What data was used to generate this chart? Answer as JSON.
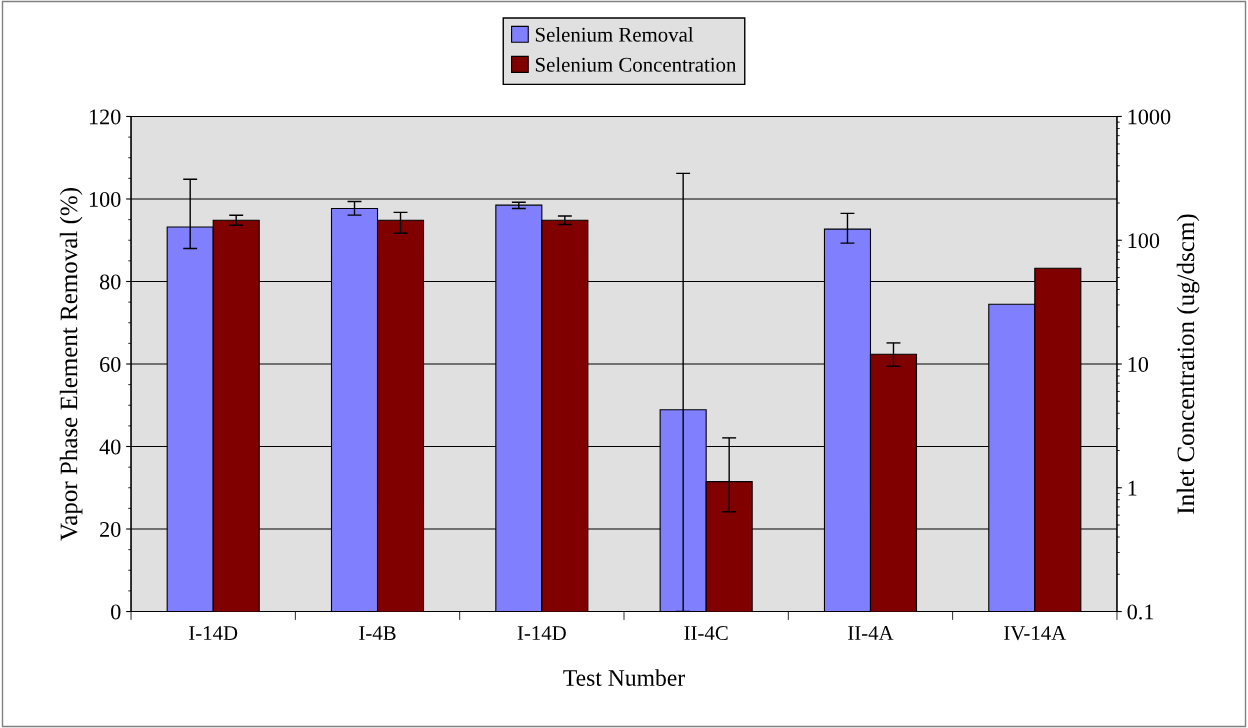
{
  "chart_data": {
    "type": "bar",
    "xlabel": "Test Number",
    "ylabel": "Vapor Phase Element Removal (%)",
    "y2label": "Inlet Concentration (ug/dscm)",
    "categories": [
      "I-14D",
      "I-4B",
      "I-14D",
      "II-4C",
      "II-4A",
      "IV-14A"
    ],
    "series": [
      {
        "name": "Selenium Removal",
        "color": "#8080ff",
        "values": [
          93.2,
          97.7,
          98.5,
          48.9,
          92.7,
          74.5
        ],
        "errors": [
          [
            88,
            104.8
          ],
          [
            96.1,
            99.4
          ],
          [
            97.7,
            99.2
          ],
          [
            0,
            106.2
          ],
          [
            89.3,
            96.5
          ],
          null
        ]
      },
      {
        "name": "Selenium Concentration",
        "color": "#800000",
        "axis": "y2",
        "values": [
          145,
          145,
          145,
          1.12,
          12,
          59.4
        ],
        "errors": [
          [
            132,
            159
          ],
          [
            114,
            168
          ],
          [
            134,
            157
          ],
          [
            0.64,
            2.53
          ],
          [
            9.6,
            14.8
          ],
          null
        ]
      }
    ],
    "ylim": [
      0,
      120
    ],
    "yticks": [
      0,
      20,
      40,
      60,
      80,
      100,
      120
    ],
    "y2lim": [
      0.1,
      1000
    ],
    "y2ticks": [
      0.1,
      1,
      10,
      100,
      1000
    ],
    "log": "y2",
    "grid": "y",
    "legend": "top"
  }
}
